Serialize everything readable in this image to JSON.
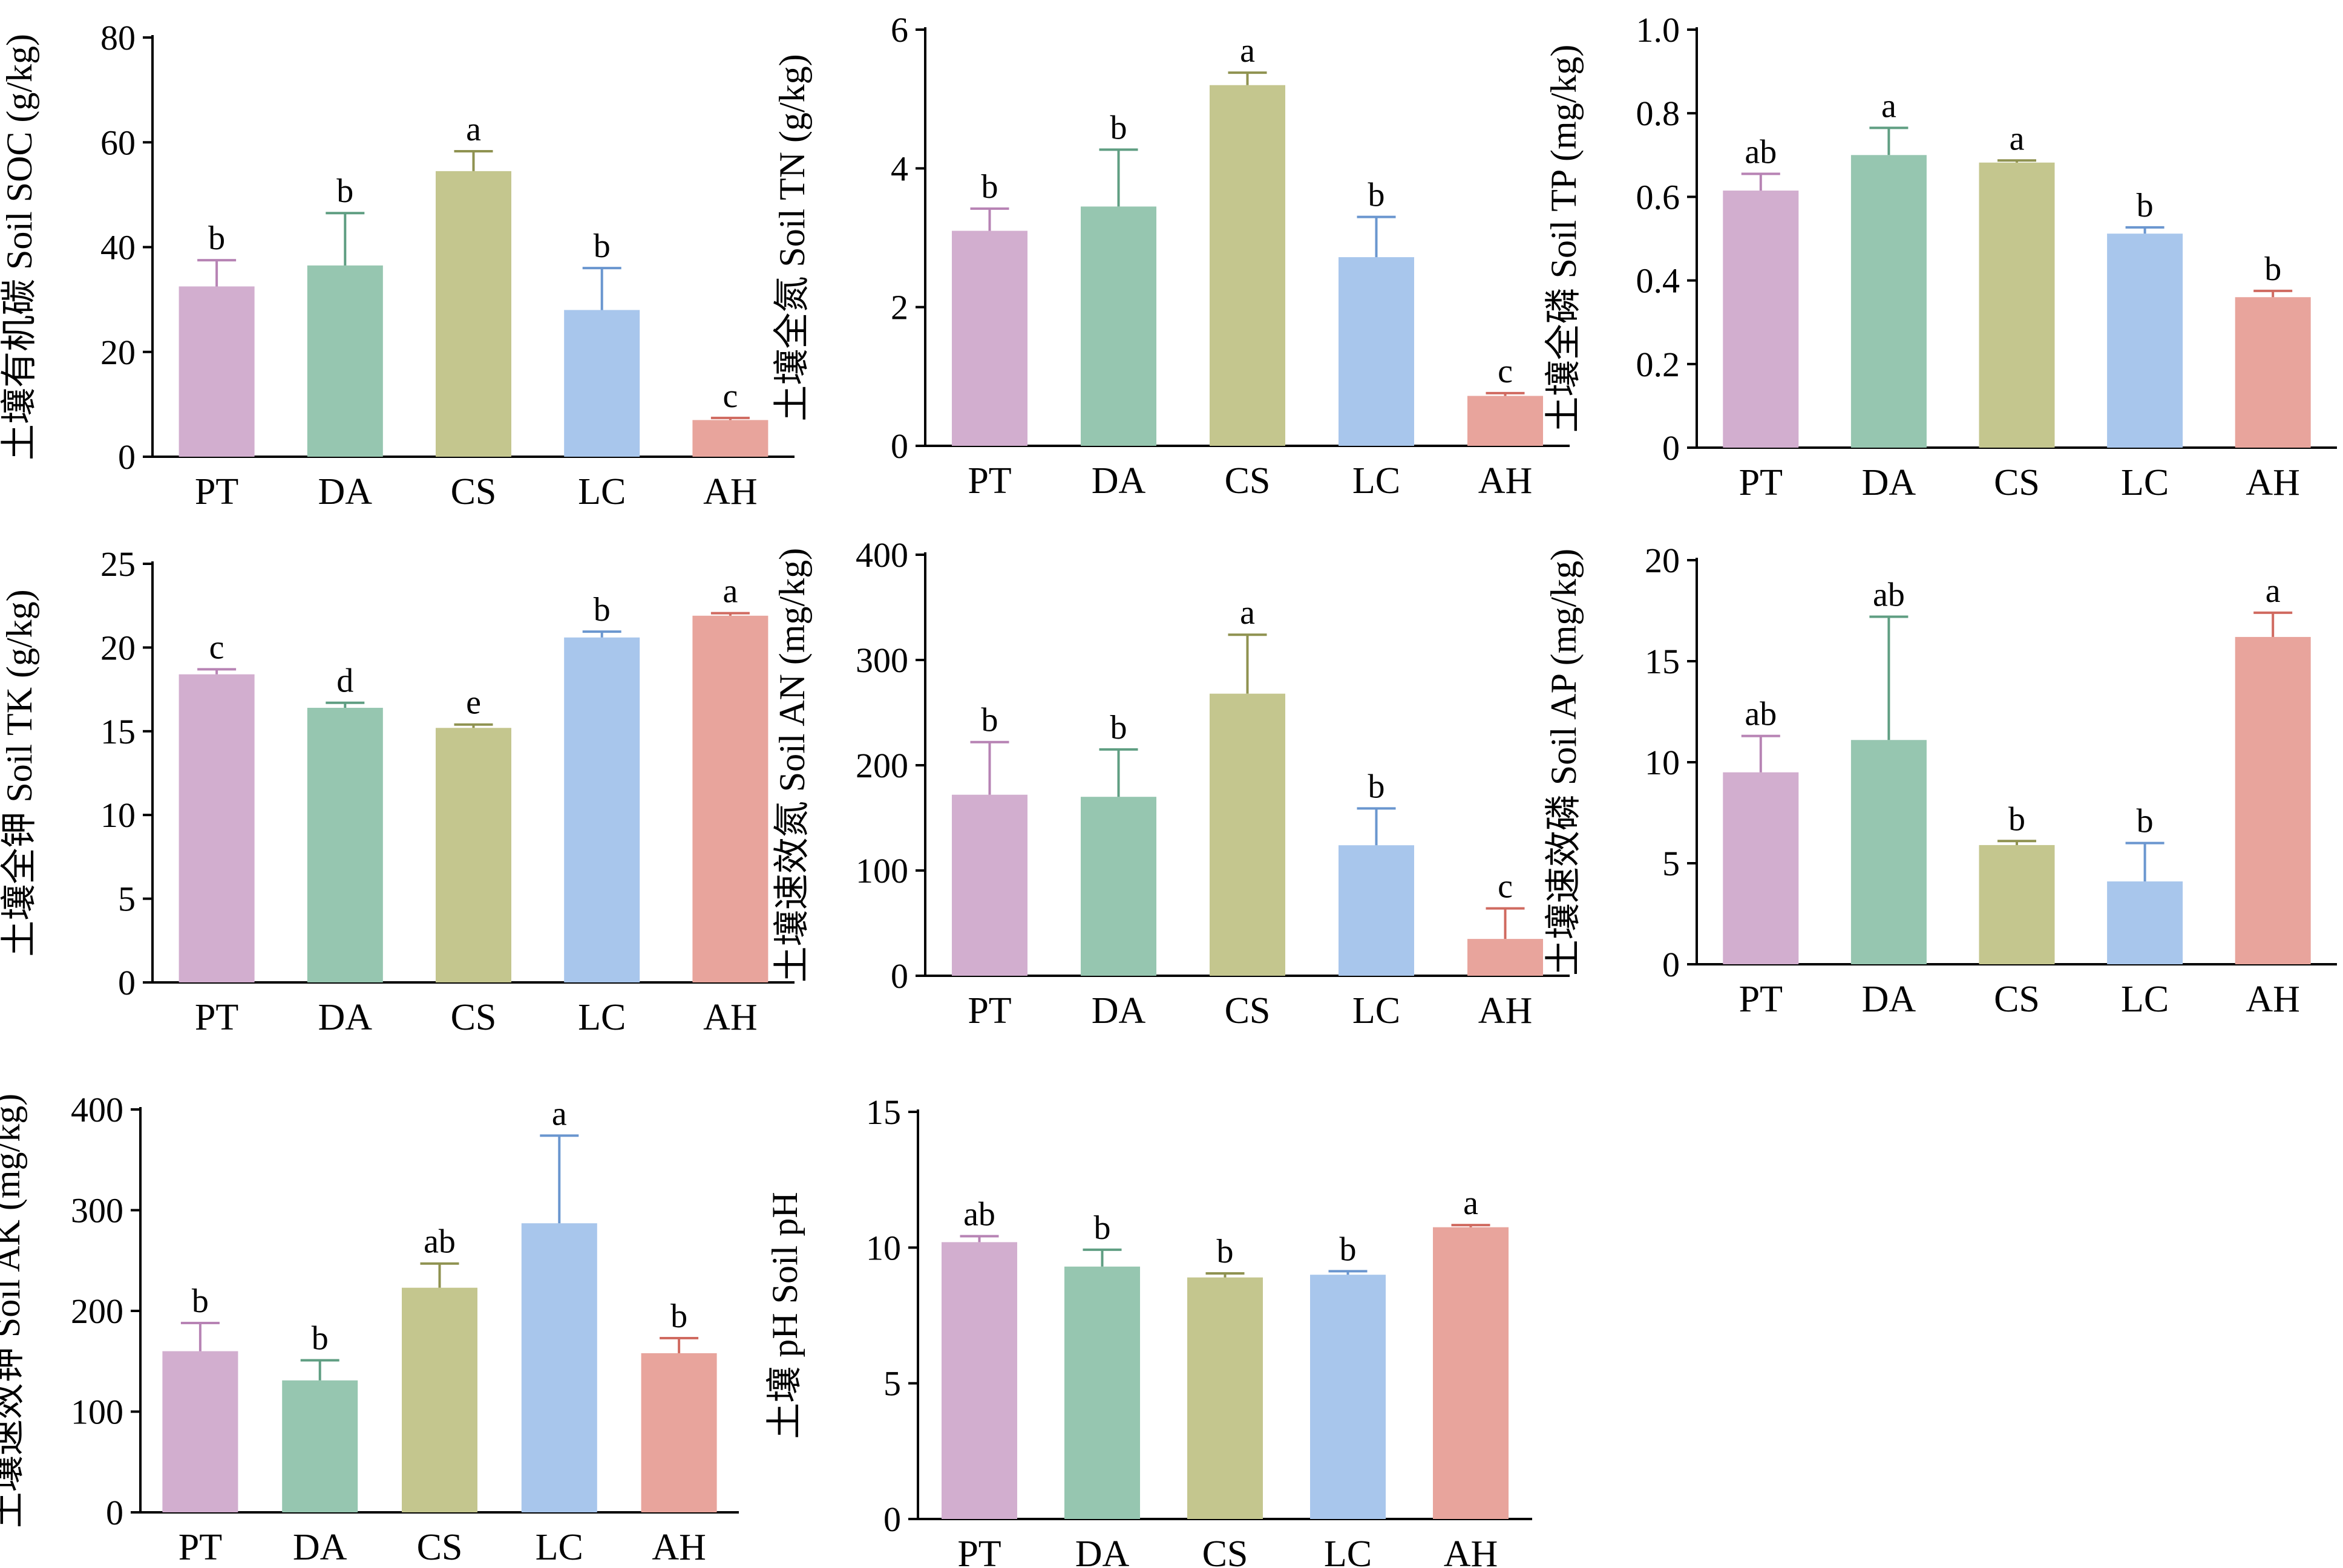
{
  "colors": {
    "PT": "#d2aecf",
    "DA": "#96c6b0",
    "CS": "#c4c68e",
    "LC": "#a8c6ec",
    "AH": "#e8a49c",
    "errorbar": {
      "PT": "#b783b4",
      "DA": "#5f9e82",
      "CS": "#8f9250",
      "LC": "#6a96cf",
      "AH": "#d06a60"
    }
  },
  "chart_data": [
    {
      "type": "bar",
      "ylabel": "土壤有机碳 Soil SOC (g/kg)",
      "categories": [
        "PT",
        "DA",
        "CS",
        "LC",
        "AH"
      ],
      "values": [
        32.5,
        36.5,
        54.5,
        28.0,
        7.0
      ],
      "errors": [
        5.0,
        10.0,
        3.8,
        8.0,
        0.4
      ],
      "letters": [
        "b",
        "b",
        "a",
        "b",
        "c"
      ],
      "ylim": [
        0,
        80
      ],
      "yticks": [
        "0",
        "20",
        "40",
        "60",
        "80"
      ]
    },
    {
      "type": "bar",
      "ylabel": "土壤全氮 Soil TN (g/kg)",
      "categories": [
        "PT",
        "DA",
        "CS",
        "LC",
        "AH"
      ],
      "values": [
        3.1,
        3.45,
        5.2,
        2.72,
        0.72
      ],
      "errors": [
        0.32,
        0.82,
        0.18,
        0.58,
        0.04
      ],
      "letters": [
        "b",
        "b",
        "a",
        "b",
        "c"
      ],
      "ylim": [
        0,
        6
      ],
      "yticks": [
        "0",
        "2",
        "4",
        "6"
      ]
    },
    {
      "type": "bar",
      "ylabel": "土壤全磷 Soil TP (mg/kg)",
      "categories": [
        "PT",
        "DA",
        "CS",
        "LC",
        "AH"
      ],
      "values": [
        0.615,
        0.7,
        0.682,
        0.512,
        0.36
      ],
      "errors": [
        0.04,
        0.065,
        0.005,
        0.015,
        0.015
      ],
      "letters": [
        "ab",
        "a",
        "a",
        "b",
        "b"
      ],
      "ylim": [
        0,
        1.0
      ],
      "yticks": [
        "0",
        "0.2",
        "0.4",
        "0.6",
        "0.8",
        "1.0"
      ]
    },
    {
      "type": "bar",
      "ylabel": "土壤全钾 Soil TK (g/kg)",
      "categories": [
        "PT",
        "DA",
        "CS",
        "LC",
        "AH"
      ],
      "values": [
        18.4,
        16.4,
        15.2,
        20.6,
        21.9
      ],
      "errors": [
        0.3,
        0.3,
        0.2,
        0.35,
        0.15
      ],
      "letters": [
        "c",
        "d",
        "e",
        "b",
        "a"
      ],
      "ylim": [
        0,
        25
      ],
      "yticks": [
        "0",
        "5",
        "10",
        "15",
        "20",
        "25"
      ]
    },
    {
      "type": "bar",
      "ylabel": "土壤速效氮 Soil AN (mg/kg)",
      "categories": [
        "PT",
        "DA",
        "CS",
        "LC",
        "AH"
      ],
      "values": [
        172,
        170,
        268,
        124,
        35
      ],
      "errors": [
        50,
        45,
        56,
        35,
        29
      ],
      "letters": [
        "b",
        "b",
        "a",
        "b",
        "c"
      ],
      "ylim": [
        0,
        400
      ],
      "yticks": [
        "0",
        "100",
        "200",
        "300",
        "400"
      ]
    },
    {
      "type": "bar",
      "ylabel": "土壤速效磷 Soil AP (mg/kg)",
      "categories": [
        "PT",
        "DA",
        "CS",
        "LC",
        "AH"
      ],
      "values": [
        9.5,
        11.1,
        5.9,
        4.1,
        16.2
      ],
      "errors": [
        1.8,
        6.1,
        0.2,
        1.9,
        1.2
      ],
      "letters": [
        "ab",
        "ab",
        "b",
        "b",
        "a"
      ],
      "ylim": [
        0,
        20
      ],
      "yticks": [
        "0",
        "5",
        "10",
        "15",
        "20"
      ]
    },
    {
      "type": "bar",
      "ylabel": "土壤速效钾 Soil AK (mg/kg)",
      "categories": [
        "PT",
        "DA",
        "CS",
        "LC",
        "AH"
      ],
      "values": [
        160,
        131,
        223,
        287,
        158
      ],
      "errors": [
        28,
        20,
        24,
        87,
        15
      ],
      "letters": [
        "b",
        "b",
        "ab",
        "a",
        "b"
      ],
      "ylim": [
        0,
        400
      ],
      "yticks": [
        "0",
        "100",
        "200",
        "300",
        "400"
      ]
    },
    {
      "type": "bar",
      "ylabel": "土壤 pH Soil pH",
      "categories": [
        "PT",
        "DA",
        "CS",
        "LC",
        "AH"
      ],
      "values": [
        10.2,
        9.3,
        8.9,
        9.0,
        10.75
      ],
      "errors": [
        0.22,
        0.62,
        0.15,
        0.13,
        0.08
      ],
      "letters": [
        "ab",
        "b",
        "b",
        "b",
        "a"
      ],
      "ylim": [
        0,
        15
      ],
      "yticks": [
        "0",
        "5",
        "10",
        "15"
      ]
    }
  ]
}
